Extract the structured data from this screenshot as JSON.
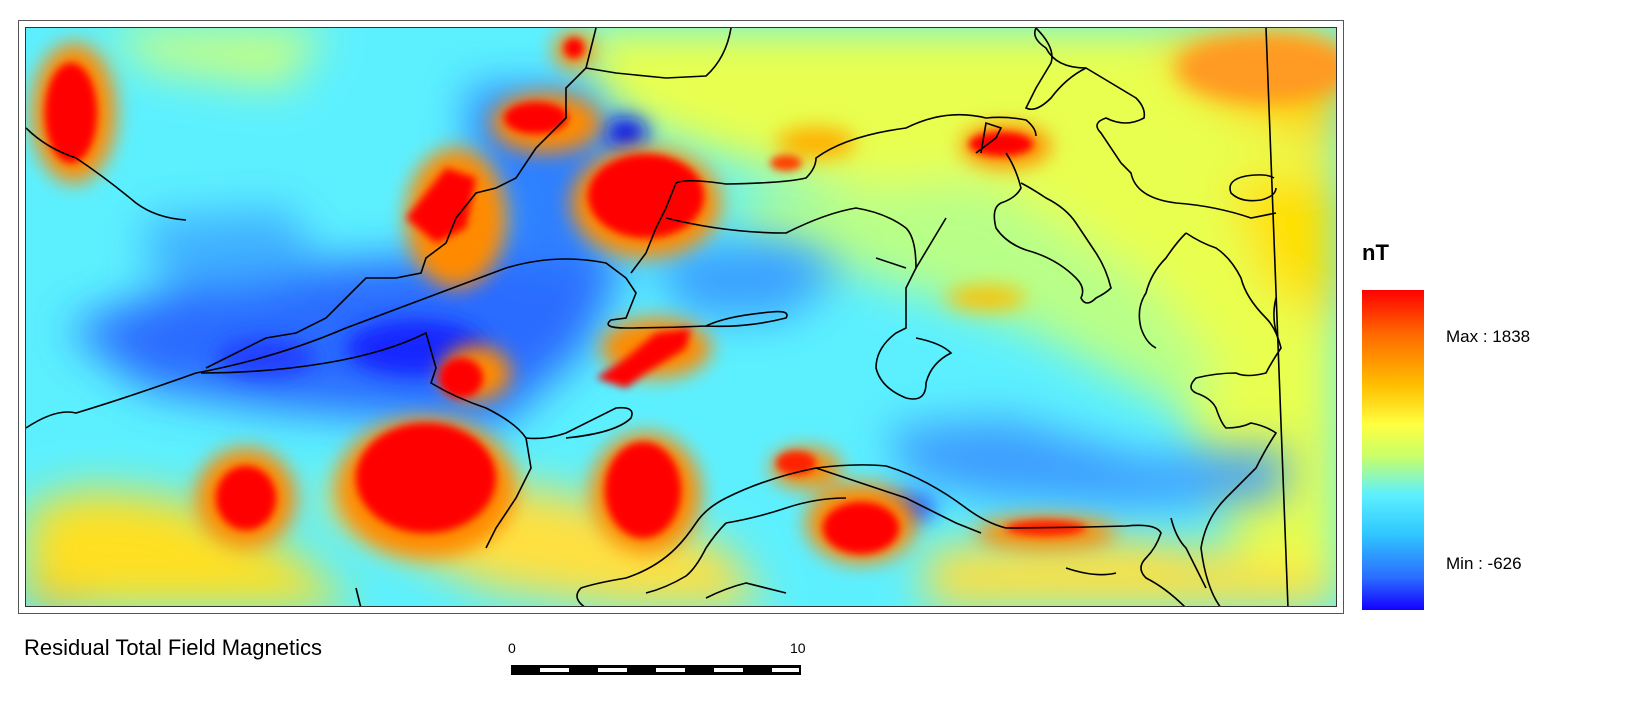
{
  "map": {
    "title": "Residual Total Field Magnetics"
  },
  "legend": {
    "unit": "nT",
    "max_label": "Max : 1838",
    "min_label": "Min : -626",
    "max_value": 1838,
    "min_value": -626,
    "colors": {
      "max": "#ff0000",
      "high": "#ff8c00",
      "mid_high": "#ffff40",
      "mid": "#5cf0ff",
      "low": "#2a6cff",
      "min": "#1400ff"
    }
  },
  "scalebar": {
    "start_label": "0",
    "end_label": "10"
  }
}
